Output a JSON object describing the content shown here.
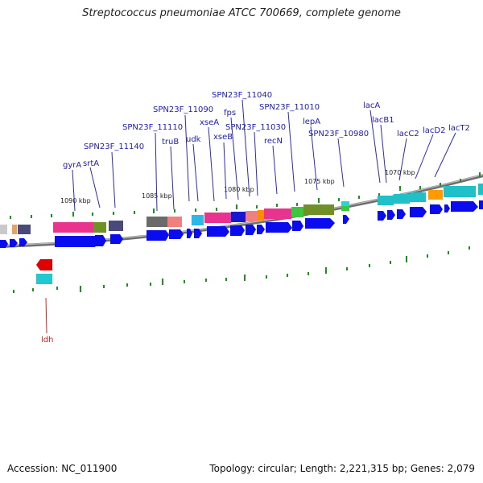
{
  "title": "Streptococcus pneumoniae ATCC 700669, complete genome",
  "footer": {
    "accession": "Accession: NC_011900",
    "summary": "Topology: circular; Length: 2,221,315 bp; Genes: 2,079"
  },
  "colors": {
    "forward_strand": "#0b0bf0",
    "reverse_strand": "#e00000",
    "label": "#1c1cb4",
    "backbone": "#8c8c8c",
    "tick": "#1f8f1f"
  },
  "scale_labels": [
    {
      "text": "1090 kbp",
      "kbp": 1090
    },
    {
      "text": "1085 kbp",
      "kbp": 1085
    },
    {
      "text": "1080 kbp",
      "kbp": 1080
    },
    {
      "text": "1075 kbp",
      "kbp": 1075
    },
    {
      "text": "1070 kbp",
      "kbp": 1070
    }
  ],
  "gene_labels": [
    {
      "text": "gyrA"
    },
    {
      "text": "srtA"
    },
    {
      "text": "SPN23F_11140"
    },
    {
      "text": "SPN23F_11110"
    },
    {
      "text": "truB"
    },
    {
      "text": "SPN23F_11090"
    },
    {
      "text": "udk"
    },
    {
      "text": "xseA"
    },
    {
      "text": "xseB"
    },
    {
      "text": "fps"
    },
    {
      "text": "SPN23F_11040"
    },
    {
      "text": "SPN23F_11030"
    },
    {
      "text": "recN"
    },
    {
      "text": "SPN23F_11010"
    },
    {
      "text": "lepA"
    },
    {
      "text": "SPN23F_10980"
    },
    {
      "text": "lacA"
    },
    {
      "text": "lacB1"
    },
    {
      "text": "lacC2"
    },
    {
      "text": "lacD2"
    },
    {
      "text": "lacT2"
    },
    {
      "text": "ldh"
    }
  ]
}
